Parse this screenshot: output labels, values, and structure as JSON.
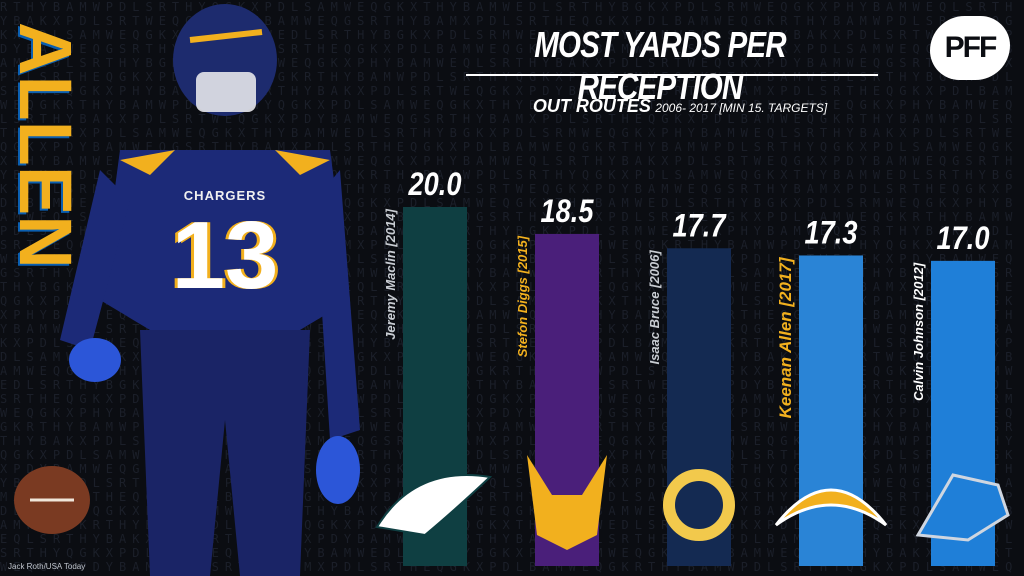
{
  "header": {
    "title": "MOST YARDS PER RECEPTION",
    "subtitle_main": "OUT ROUTES",
    "subtitle_detail": "2006- 2017 [MIN 15. TARGETS]",
    "logo_text": "PFF"
  },
  "side": {
    "player_word": "ALLEN",
    "jersey_team": "CHARGERS",
    "jersey_number": "13"
  },
  "credit": "Jack Roth/USA Today",
  "chart_data": {
    "type": "bar",
    "title": "MOST YARDS PER RECEPTION",
    "subtitle": "OUT ROUTES 2006- 2017 [MIN 15. TARGETS]",
    "categories": [
      "Jeremy Maclin [2014]",
      "Stefon Diggs [2015]",
      "Isaac Bruce [2006]",
      "Keenan Allen [2017]",
      "Calvin Johnson [2012]"
    ],
    "values": [
      20.0,
      18.5,
      17.7,
      17.3,
      17.0
    ],
    "value_labels": [
      "20.0",
      "18.5",
      "17.7",
      "17.3",
      "17.0"
    ],
    "teams": [
      "eagles-logo-icon",
      "vikings-logo-icon",
      "rams-logo-icon",
      "chargers-logo-icon",
      "lions-logo-icon"
    ],
    "bar_colors": [
      "#0f3f42",
      "#4a1f7a",
      "#142a52",
      "#2a84d6",
      "#1f7fd8"
    ],
    "label_colors": [
      "#c8ccd2",
      "#f2b01e",
      "#c8ccd2",
      "#f2b01e",
      "#ffffff"
    ],
    "highlight": "Keenan Allen [2017]"
  }
}
